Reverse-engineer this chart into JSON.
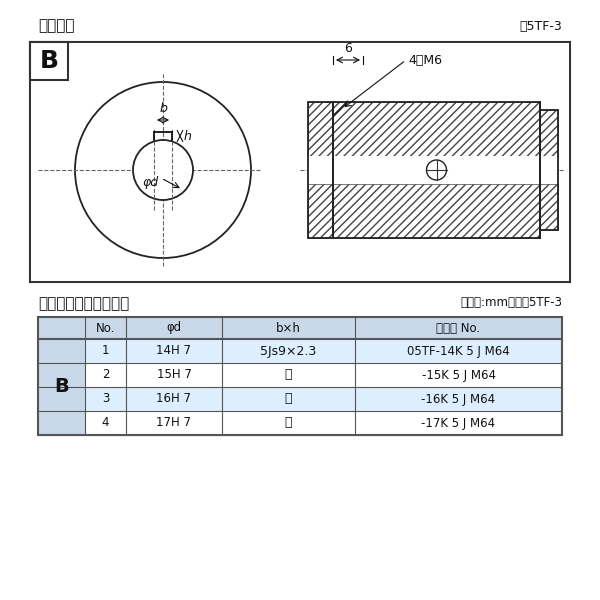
{
  "title_left": "軸穴形状",
  "title_right": "図5TF-3",
  "table_title_left": "軸穴形状コード一覧表",
  "table_title_right": "（単位:mm）　表5TF-3",
  "bg_color": "#ffffff",
  "diagram_border": "#333333",
  "hatch_color": "#555555",
  "dim_label_6": "6",
  "dim_label_4M6": "4－M6",
  "label_b": "b",
  "label_h": "h",
  "label_phid": "φd",
  "table_headers": [
    "No.",
    "φd",
    "b×h",
    "コード No."
  ],
  "rows": [
    [
      "1",
      "14H 7",
      "5Js9×2.3",
      "05TF-14K 5 J M64"
    ],
    [
      "2",
      "15H 7",
      "〃",
      "-15K 5 J M64"
    ],
    [
      "3",
      "16H 7",
      "〃",
      "-16K 5 J M64"
    ],
    [
      "4",
      "17H 7",
      "〃",
      "-17K 5 J M64"
    ]
  ],
  "row_colors": [
    "#ddeeff",
    "#ffffff",
    "#ddeeff",
    "#ffffff"
  ],
  "header_color": "#c8d8e8",
  "b_col_color": "#c8d8e8",
  "table_border": "#555555"
}
